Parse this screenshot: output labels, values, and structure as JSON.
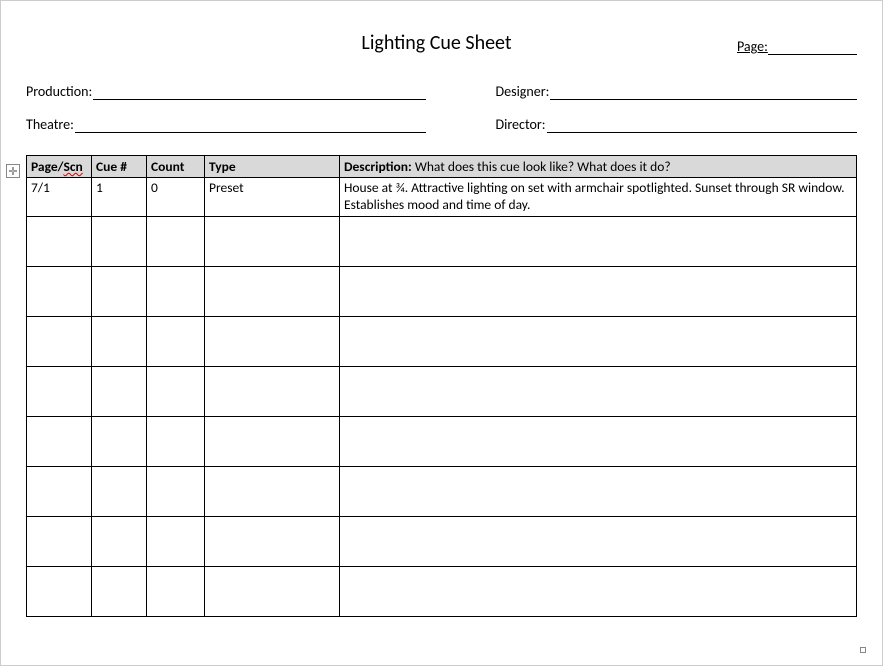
{
  "title": "Lighting Cue Sheet",
  "page_label": "Page:",
  "page_blank_underscore": " ",
  "meta": {
    "production_label": "Production:",
    "theatre_label": "Theatre:",
    "designer_label": "Designer:",
    "director_label": "Director:"
  },
  "anchor_glyph": "✛",
  "table": {
    "columns": {
      "pagescn_prefix": "Page/",
      "pagescn_squiggle": "Scn",
      "cue": "Cue #",
      "count": "Count",
      "type": "Type",
      "desc_bold": "Description:",
      "desc_sub": " What does this cue look like? What does it do?"
    },
    "rows": [
      {
        "pagescn": "7/1",
        "cue": "1",
        "count": "0",
        "type": "Preset",
        "desc": "House at ¾.  Attractive lighting on set with armchair spotlighted.  Sunset through SR window. Establishes mood and time of day."
      }
    ],
    "empty_row_count": 8,
    "header_bg": "#d9d9d9",
    "border_color": "#000000"
  }
}
